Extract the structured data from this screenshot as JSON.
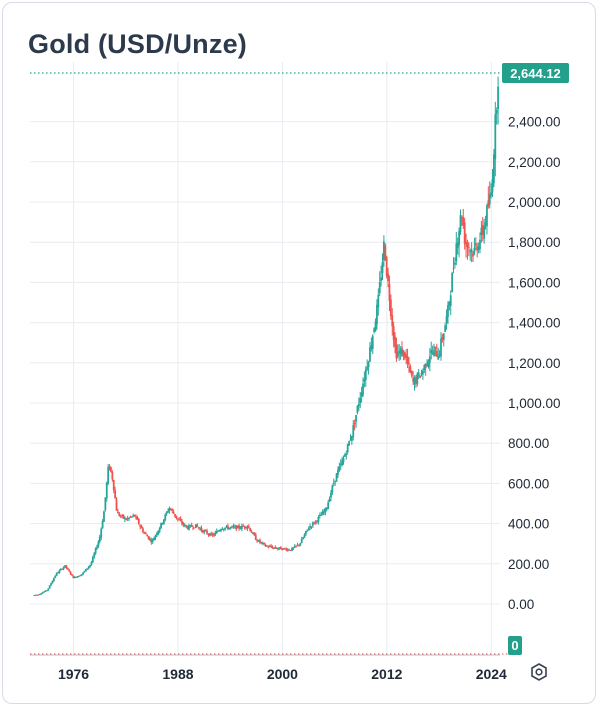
{
  "header": {
    "title": "Gold (USD/Unze)"
  },
  "icons": {
    "settings": "gear-icon"
  },
  "colors": {
    "up": "#26a69a",
    "down": "#ef5350",
    "accent": "#22a08c",
    "grid": "#e9ecf1",
    "text": "#1f2937"
  },
  "chart_data": {
    "type": "candlestick",
    "title": "Gold (USD/Unze)",
    "xlabel": "",
    "ylabel": "",
    "ylim": [
      -100,
      2700
    ],
    "y_ticks": [
      0,
      200,
      400,
      600,
      800,
      1000,
      1200,
      1400,
      1600,
      1800,
      2000,
      2200,
      2400
    ],
    "y_tick_labels": [
      "0.00",
      "200.00",
      "400.00",
      "600.00",
      "800.00",
      "1,000.00",
      "1,200.00",
      "1,400.00",
      "1,600.00",
      "1,800.00",
      "2,000.00",
      "2,200.00",
      "2,400.00"
    ],
    "x_ticks": [
      1976,
      1988,
      2000,
      2012,
      2024
    ],
    "x_tick_labels": [
      "1976",
      "1988",
      "2000",
      "2012",
      "2024"
    ],
    "xlim": [
      1971.0,
      2025.0
    ],
    "last_price": 2644.12,
    "last_price_label": "2,644.12",
    "bottom_badge_label": "0",
    "grid": true,
    "series": [
      {
        "x": [
          1971,
          1972,
          1973,
          1974,
          1975,
          1976,
          1977,
          1978,
          1979,
          1979.5,
          1980.05,
          1980.5,
          1981,
          1982,
          1983,
          1984,
          1985,
          1986,
          1987,
          1988,
          1989,
          1990,
          1991,
          1992,
          1993,
          1994,
          1995,
          1996,
          1997,
          1998,
          1999,
          2000,
          2001,
          2002,
          2003,
          2004,
          2005,
          2006,
          2007,
          2008,
          2009,
          2010,
          2011,
          2011.7,
          2012,
          2013,
          2014,
          2015,
          2016,
          2017,
          2018,
          2019,
          2020,
          2020.6,
          2021,
          2022,
          2023,
          2024,
          2024.8
        ],
        "close": [
          41,
          48,
          70,
          150,
          190,
          130,
          150,
          200,
          330,
          460,
          700,
          620,
          450,
          420,
          440,
          360,
          310,
          390,
          480,
          420,
          380,
          390,
          360,
          340,
          380,
          380,
          380,
          390,
          320,
          290,
          280,
          275,
          270,
          300,
          380,
          420,
          470,
          620,
          720,
          850,
          1050,
          1250,
          1500,
          1800,
          1650,
          1250,
          1250,
          1100,
          1150,
          1250,
          1250,
          1450,
          1800,
          1950,
          1800,
          1750,
          1850,
          2050,
          2644
        ]
      }
    ]
  }
}
